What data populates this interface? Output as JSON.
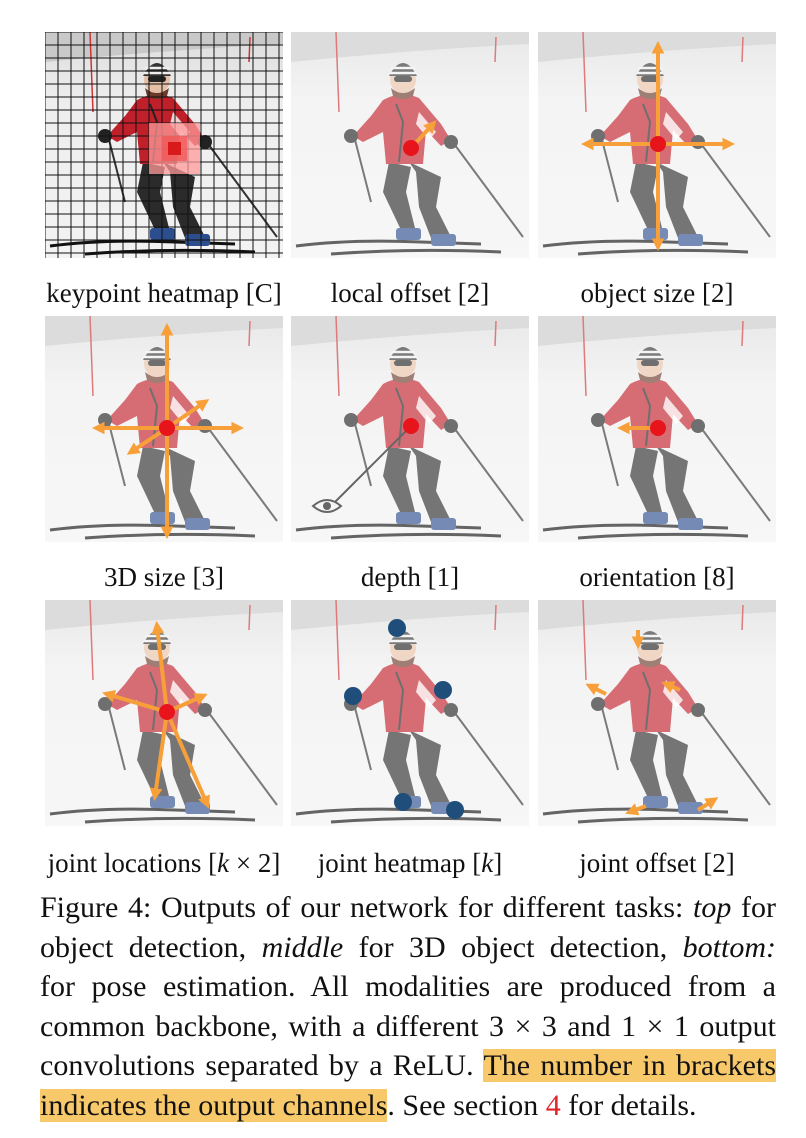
{
  "panels": [
    {
      "id": "keypoint-heatmap",
      "label": "keypoint heatmap [C]"
    },
    {
      "id": "local-offset",
      "label": "local offset [2]"
    },
    {
      "id": "object-size",
      "label": "object size [2]"
    },
    {
      "id": "3d-size",
      "label": "3D size [3]"
    },
    {
      "id": "depth",
      "label": "depth [1]"
    },
    {
      "id": "orientation",
      "label": "orientation [8]"
    },
    {
      "id": "joint-locations",
      "label_prefix": "joint locations [",
      "label_var": "k",
      "label_suffix": " × 2]"
    },
    {
      "id": "joint-heatmap",
      "label_prefix": "joint heatmap [",
      "label_var": "k",
      "label_suffix": "]"
    },
    {
      "id": "joint-offset",
      "label": "joint offset [2]"
    }
  ],
  "caption": {
    "l1_a": "Figure 4: Outputs of our network for different tasks: ",
    "l1_top": "top",
    "l1_b": " for",
    "l2_a": "object detection, ",
    "l2_middle": "middle",
    "l2_b": " for 3D object detection, ",
    "l2_bottom": "bottom:",
    "l3": "for pose estimation.  All modalities are produced from a",
    "l4": "common backbone, with a different 3 × 3 and 1 × 1 output",
    "l5_a": "convolutions separated by a ReLU. ",
    "l5_hl": "The number in brackets",
    "l6_hl": "indicates the output channels",
    "l6_b": ". See section ",
    "l6_ref": "4",
    "l6_c": " for details."
  },
  "colors": {
    "arrow": "#f7a03a",
    "center": "#e8141b",
    "joint": "#1f4e7a",
    "highlight": "#f8c96b",
    "reference": "#e0262a"
  }
}
